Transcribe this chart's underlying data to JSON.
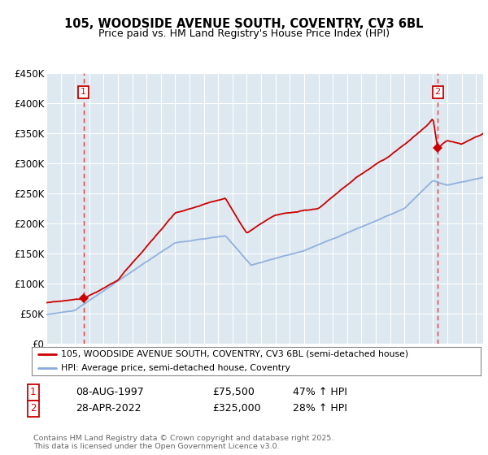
{
  "title": "105, WOODSIDE AVENUE SOUTH, COVENTRY, CV3 6BL",
  "subtitle": "Price paid vs. HM Land Registry's House Price Index (HPI)",
  "legend_line1": "105, WOODSIDE AVENUE SOUTH, COVENTRY, CV3 6BL (semi-detached house)",
  "legend_line2": "HPI: Average price, semi-detached house, Coventry",
  "annotation1_label": "1",
  "annotation1_date": "08-AUG-1997",
  "annotation1_price": "£75,500",
  "annotation1_hpi": "47% ↑ HPI",
  "annotation2_label": "2",
  "annotation2_date": "28-APR-2022",
  "annotation2_price": "£325,000",
  "annotation2_hpi": "28% ↑ HPI",
  "footer": "Contains HM Land Registry data © Crown copyright and database right 2025.\nThis data is licensed under the Open Government Licence v3.0.",
  "red_color": "#cc0000",
  "blue_color": "#88aadd",
  "dashed_color": "#ee3333",
  "grid_color": "#ffffff",
  "background_color": "#dde8f0",
  "ylim": [
    0,
    450000
  ],
  "xlim_start": 1995.0,
  "xlim_end": 2025.5,
  "sale1_year": 1997.6,
  "sale1_price": 75500,
  "sale2_year": 2022.33,
  "sale2_price": 325000
}
